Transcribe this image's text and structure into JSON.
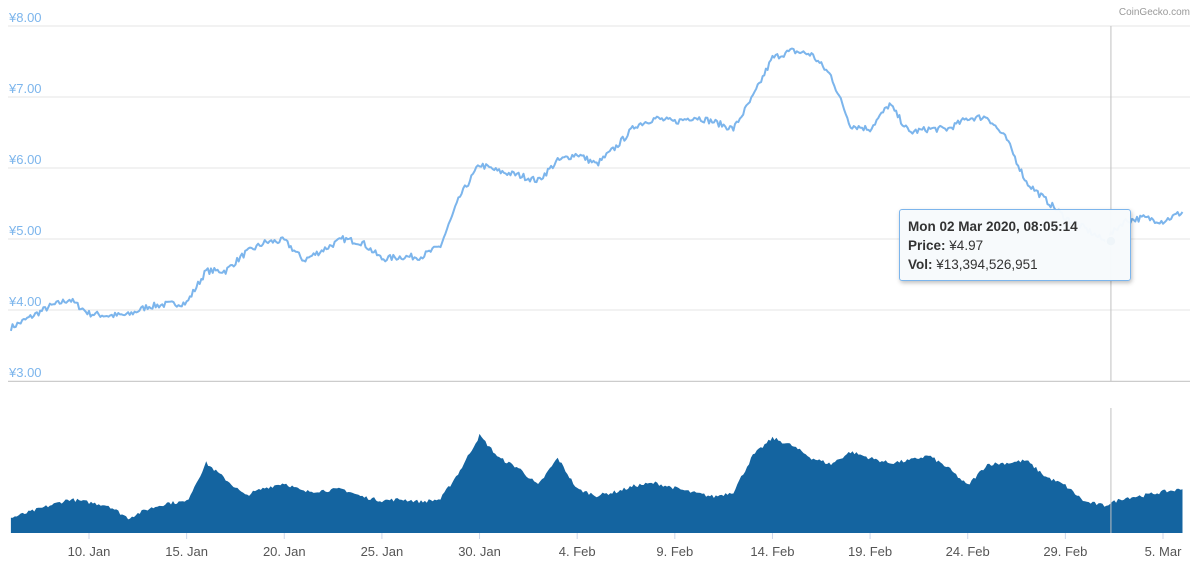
{
  "credit": "CoinGecko.com",
  "chart_data": [
    {
      "type": "line",
      "title": "",
      "ylabel": "",
      "ylim": [
        3,
        8
      ],
      "y_ticks": [
        "¥3.00",
        "¥4.00",
        "¥5.00",
        "¥6.00",
        "¥7.00",
        "¥8.00"
      ],
      "x_range": [
        "2020-01-06",
        "2020-03-06"
      ],
      "x_ticks": [
        "10. Jan",
        "15. Jan",
        "20. Jan",
        "25. Jan",
        "30. Jan",
        "4. Feb",
        "9. Feb",
        "14. Feb",
        "19. Feb",
        "24. Feb",
        "29. Feb",
        "5. Mar"
      ],
      "grid": true,
      "color": "#7cb5ec",
      "series": [
        {
          "values": [
            [
              "2020-01-06",
              3.75
            ],
            [
              "2020-01-07",
              3.9
            ],
            [
              "2020-01-08",
              4.05
            ],
            [
              "2020-01-09",
              4.15
            ],
            [
              "2020-01-10",
              3.95
            ],
            [
              "2020-01-11",
              3.92
            ],
            [
              "2020-01-12",
              3.93
            ],
            [
              "2020-01-13",
              4.05
            ],
            [
              "2020-01-14",
              4.08
            ],
            [
              "2020-01-15",
              4.1
            ],
            [
              "2020-01-16",
              4.55
            ],
            [
              "2020-01-17",
              4.55
            ],
            [
              "2020-01-18",
              4.8
            ],
            [
              "2020-01-19",
              4.95
            ],
            [
              "2020-01-20",
              4.98
            ],
            [
              "2020-01-21",
              4.7
            ],
            [
              "2020-01-22",
              4.85
            ],
            [
              "2020-01-23",
              5.0
            ],
            [
              "2020-01-24",
              4.95
            ],
            [
              "2020-01-25",
              4.72
            ],
            [
              "2020-01-26",
              4.75
            ],
            [
              "2020-01-27",
              4.75
            ],
            [
              "2020-01-28",
              4.9
            ],
            [
              "2020-01-29",
              5.6
            ],
            [
              "2020-01-30",
              6.05
            ],
            [
              "2020-01-31",
              5.95
            ],
            [
              "2020-02-01",
              5.9
            ],
            [
              "2020-02-02",
              5.82
            ],
            [
              "2020-02-03",
              6.1
            ],
            [
              "2020-02-04",
              6.2
            ],
            [
              "2020-02-05",
              6.05
            ],
            [
              "2020-02-06",
              6.3
            ],
            [
              "2020-02-07",
              6.6
            ],
            [
              "2020-02-08",
              6.7
            ],
            [
              "2020-02-09",
              6.65
            ],
            [
              "2020-02-10",
              6.72
            ],
            [
              "2020-02-11",
              6.65
            ],
            [
              "2020-02-12",
              6.55
            ],
            [
              "2020-02-13",
              7.0
            ],
            [
              "2020-02-14",
              7.55
            ],
            [
              "2020-02-15",
              7.65
            ],
            [
              "2020-02-16",
              7.6
            ],
            [
              "2020-02-17",
              7.3
            ],
            [
              "2020-02-18",
              6.6
            ],
            [
              "2020-02-19",
              6.55
            ],
            [
              "2020-02-20",
              6.9
            ],
            [
              "2020-02-21",
              6.5
            ],
            [
              "2020-02-22",
              6.55
            ],
            [
              "2020-02-23",
              6.55
            ],
            [
              "2020-02-24",
              6.7
            ],
            [
              "2020-02-25",
              6.72
            ],
            [
              "2020-02-26",
              6.4
            ],
            [
              "2020-02-27",
              5.8
            ],
            [
              "2020-02-28",
              5.55
            ],
            [
              "2020-02-29",
              5.3
            ],
            [
              "2020-03-01",
              5.15
            ],
            [
              "2020-03-02",
              4.97
            ],
            [
              "2020-03-03",
              5.25
            ],
            [
              "2020-03-04",
              5.3
            ],
            [
              "2020-03-05",
              5.25
            ],
            [
              "2020-03-06",
              5.38
            ]
          ]
        }
      ]
    },
    {
      "type": "area",
      "title": "",
      "ylabel": "",
      "x_range": [
        "2020-01-06",
        "2020-03-06"
      ],
      "color": "#1464a0",
      "series": [
        {
          "values": [
            [
              "2020-01-06",
              0.12
            ],
            [
              "2020-01-08",
              0.22
            ],
            [
              "2020-01-09",
              0.27
            ],
            [
              "2020-01-11",
              0.22
            ],
            [
              "2020-01-12",
              0.12
            ],
            [
              "2020-01-13",
              0.19
            ],
            [
              "2020-01-14",
              0.24
            ],
            [
              "2020-01-15",
              0.25
            ],
            [
              "2020-01-16",
              0.56
            ],
            [
              "2020-01-17",
              0.43
            ],
            [
              "2020-01-18",
              0.3
            ],
            [
              "2020-01-19",
              0.36
            ],
            [
              "2020-01-20",
              0.4
            ],
            [
              "2020-01-21",
              0.33
            ],
            [
              "2020-01-22",
              0.34
            ],
            [
              "2020-01-23",
              0.35
            ],
            [
              "2020-01-24",
              0.29
            ],
            [
              "2020-01-25",
              0.26
            ],
            [
              "2020-01-26",
              0.27
            ],
            [
              "2020-01-27",
              0.25
            ],
            [
              "2020-01-28",
              0.27
            ],
            [
              "2020-01-29",
              0.5
            ],
            [
              "2020-01-30",
              0.78
            ],
            [
              "2020-01-31",
              0.6
            ],
            [
              "2020-02-01",
              0.52
            ],
            [
              "2020-02-02",
              0.38
            ],
            [
              "2020-02-03",
              0.6
            ],
            [
              "2020-02-04",
              0.35
            ],
            [
              "2020-02-05",
              0.3
            ],
            [
              "2020-02-06",
              0.33
            ],
            [
              "2020-02-07",
              0.38
            ],
            [
              "2020-02-08",
              0.4
            ],
            [
              "2020-02-09",
              0.36
            ],
            [
              "2020-02-10",
              0.32
            ],
            [
              "2020-02-11",
              0.29
            ],
            [
              "2020-02-12",
              0.33
            ],
            [
              "2020-02-13",
              0.62
            ],
            [
              "2020-02-14",
              0.76
            ],
            [
              "2020-02-15",
              0.7
            ],
            [
              "2020-02-16",
              0.6
            ],
            [
              "2020-02-17",
              0.55
            ],
            [
              "2020-02-18",
              0.65
            ],
            [
              "2020-02-19",
              0.6
            ],
            [
              "2020-02-20",
              0.56
            ],
            [
              "2020-02-21",
              0.58
            ],
            [
              "2020-02-22",
              0.62
            ],
            [
              "2020-02-23",
              0.52
            ],
            [
              "2020-02-24",
              0.38
            ],
            [
              "2020-02-25",
              0.55
            ],
            [
              "2020-02-26",
              0.56
            ],
            [
              "2020-02-27",
              0.58
            ],
            [
              "2020-02-28",
              0.45
            ],
            [
              "2020-02-29",
              0.38
            ],
            [
              "2020-03-01",
              0.25
            ],
            [
              "2020-03-02",
              0.22
            ],
            [
              "2020-03-03",
              0.28
            ],
            [
              "2020-03-04",
              0.3
            ],
            [
              "2020-03-05",
              0.33
            ],
            [
              "2020-03-06",
              0.35
            ]
          ]
        }
      ]
    }
  ],
  "tooltip": {
    "header": "Mon 02 Mar 2020, 08:05:14",
    "price_label": "Price:",
    "price_value": "¥4.97",
    "vol_label": "Vol:",
    "vol_value": "¥13,394,526,951",
    "x": "2020-03-02",
    "y": 4.97
  }
}
